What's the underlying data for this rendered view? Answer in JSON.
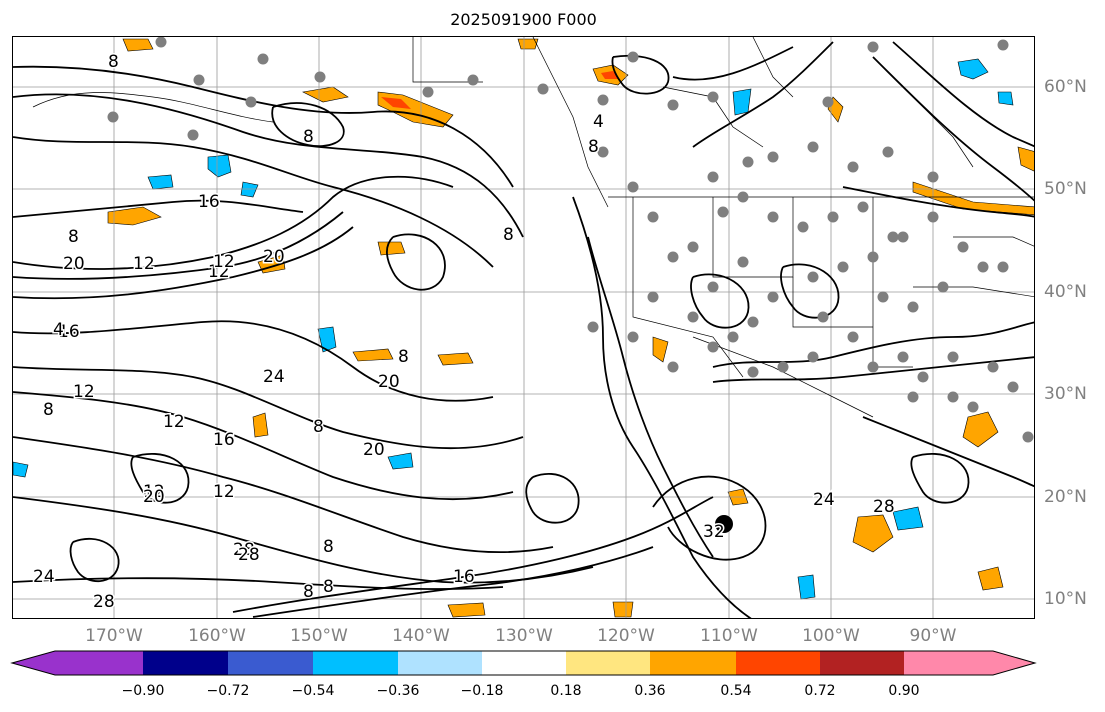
{
  "title": "2025091900 F000",
  "lon_labels": [
    "170°W",
    "160°W",
    "150°W",
    "140°W",
    "130°W",
    "120°W",
    "110°W",
    "100°W",
    "90°W"
  ],
  "lat_labels": [
    "60°N",
    "50°N",
    "40°N",
    "30°N",
    "20°N",
    "10°N"
  ],
  "colorbar": {
    "colors": [
      "#9932cc",
      "#00008b",
      "#3a5bd0",
      "#00bfff",
      "#afe2ff",
      "#ffffff",
      "#ffe680",
      "#ffa500",
      "#ff4500",
      "#b22222",
      "#ff88aa"
    ],
    "ticks": [
      "−0.90",
      "−0.72",
      "−0.54",
      "−0.36",
      "−0.18",
      "0.18",
      "0.36",
      "0.54",
      "0.72",
      "0.90"
    ]
  },
  "contour_labels": [
    "8",
    "8",
    "8",
    "12",
    "16",
    "20",
    "12",
    "16",
    "20",
    "24",
    "8",
    "8",
    "20",
    "16",
    "12",
    "8",
    "12",
    "20",
    "12",
    "8",
    "28",
    "24",
    "28",
    "8",
    "16",
    "12",
    "4",
    "28",
    "24",
    "32",
    "8",
    "8",
    "20",
    "12",
    "28",
    "8",
    "4"
  ],
  "fill_colors": {
    "orange": "#ffa500",
    "red": "#ff4500",
    "blue": "#00bfff",
    "lightblue": "#afe2ff",
    "yellow": "#ffe680"
  }
}
